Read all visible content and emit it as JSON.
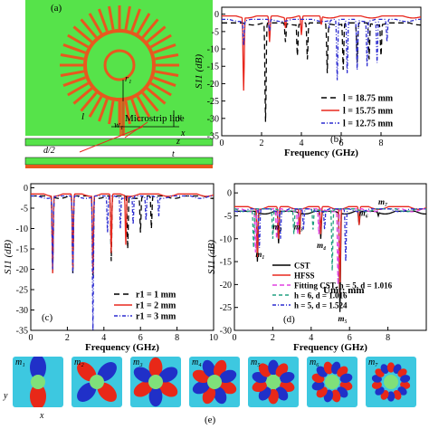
{
  "panel_a": {
    "label": "(a)",
    "annotations": {
      "r1": "r₁",
      "l": "l",
      "w1": "w₁",
      "microstrip": "Microstrip line",
      "half_d": "d/2",
      "t": "t",
      "y": "y",
      "x": "x",
      "z": "z"
    }
  },
  "panel_b": {
    "label": "(b)"
  },
  "panel_c": {
    "label": "(c)"
  },
  "panel_d": {
    "label": "(d)",
    "unit_text": "Unit: mm"
  },
  "panel_e": {
    "label": "(e)",
    "modes": [
      "m₁",
      "m₂",
      "m₃",
      "m₄",
      "m₅",
      "m₆",
      "m₇"
    ],
    "axis_y": "y",
    "axis_x": "x"
  },
  "chart_data": [
    {
      "type": "line",
      "panel": "(b)",
      "xlabel": "Frequency (GHz)",
      "ylabel": "S11 (dB)",
      "xlim": [
        0,
        10
      ],
      "ylim": [
        -35,
        2
      ],
      "xticks": [
        0,
        2,
        4,
        6,
        8
      ],
      "yticks": [
        0,
        -5,
        -10,
        -15,
        -20,
        -25,
        -30,
        -35
      ],
      "series": [
        {
          "name": "l = 18.75 mm",
          "color": "#000000",
          "dash": "6,4",
          "baseline": -2.5,
          "dips": [
            [
              2.2,
              -31
            ],
            [
              3.2,
              -8
            ],
            [
              3.8,
              -12
            ],
            [
              4.3,
              -13
            ],
            [
              5.3,
              -17
            ],
            [
              6.1,
              -16
            ],
            [
              6.8,
              -14
            ],
            [
              7.4,
              -13
            ],
            [
              8.0,
              -12
            ]
          ]
        },
        {
          "name": "l = 15.75 mm",
          "color": "#e8281e",
          "dash": "",
          "baseline": -0.5,
          "dips": [
            [
              1.1,
              -22
            ],
            [
              2.4,
              -8
            ],
            [
              3.2,
              -4
            ],
            [
              4.0,
              -6
            ],
            [
              5.0,
              -3
            ]
          ]
        },
        {
          "name": "l = 12.75 mm",
          "color": "#2c2cd0",
          "dash": "4,2,1,2",
          "baseline": -1.5,
          "dips": [
            [
              1.1,
              -9
            ],
            [
              2.4,
              -5
            ],
            [
              5.4,
              -4
            ],
            [
              5.8,
              -19
            ],
            [
              6.3,
              -17
            ],
            [
              6.8,
              -16
            ],
            [
              7.3,
              -15
            ],
            [
              7.8,
              -14
            ],
            [
              8.3,
              -8
            ]
          ]
        }
      ]
    },
    {
      "type": "line",
      "panel": "(c)",
      "xlabel": "Frequency (GHz)",
      "ylabel": "S11 (dB)",
      "xlim": [
        0,
        10
      ],
      "ylim": [
        -35,
        1
      ],
      "xticks": [
        0,
        2,
        4,
        6,
        8,
        10
      ],
      "yticks": [
        0,
        -5,
        -10,
        -15,
        -20,
        -25,
        -30,
        -35
      ],
      "series": [
        {
          "name": "r1 = 1 mm",
          "color": "#000000",
          "dash": "6,4",
          "baseline": -2,
          "dips": [
            [
              1.2,
              -21
            ],
            [
              2.3,
              -21
            ],
            [
              3.4,
              -22
            ],
            [
              4.4,
              -18
            ],
            [
              5.3,
              -15
            ],
            [
              6.0,
              -11
            ],
            [
              6.6,
              -10
            ]
          ]
        },
        {
          "name": "r1 = 2 mm",
          "color": "#e8281e",
          "dash": "",
          "baseline": -1.5,
          "dips": [
            [
              1.2,
              -21
            ],
            [
              2.3,
              -20
            ],
            [
              3.4,
              -21
            ],
            [
              4.4,
              -16
            ],
            [
              5.2,
              -14
            ]
          ]
        },
        {
          "name": "r1 = 3 mm",
          "color": "#2c2cd0",
          "dash": "4,2,1,2",
          "baseline": -2,
          "dips": [
            [
              1.2,
              -20
            ],
            [
              2.3,
              -21
            ],
            [
              3.4,
              -35
            ],
            [
              4.2,
              -11
            ],
            [
              4.9,
              -10
            ],
            [
              5.6,
              -9
            ],
            [
              6.3,
              -8
            ],
            [
              7.0,
              -7
            ]
          ]
        }
      ]
    },
    {
      "type": "line",
      "panel": "(d)",
      "xlabel": "Frequency (GHz)",
      "ylabel": "S11 (dB)",
      "xlim": [
        0,
        10
      ],
      "ylim": [
        -30,
        2
      ],
      "xticks": [
        0,
        2,
        4,
        6,
        8
      ],
      "yticks": [
        0,
        -5,
        -10,
        -15,
        -20,
        -25,
        -30
      ],
      "annotations": [
        "m₁",
        "m₂",
        "m₃",
        "m₄",
        "m₅",
        "m₆",
        "m₇"
      ],
      "series": [
        {
          "name": "CST",
          "color": "#000000",
          "dash": "",
          "baseline": -4,
          "dips": [
            [
              1.2,
              -15
            ],
            [
              2.3,
              -11
            ],
            [
              3.4,
              -9
            ],
            [
              4.5,
              -10
            ],
            [
              5.5,
              -26
            ],
            [
              6.5,
              -7
            ],
            [
              7.5,
              -5
            ]
          ]
        },
        {
          "name": "HFSS",
          "color": "#e8281e",
          "dash": "",
          "baseline": -3,
          "dips": [
            [
              1.2,
              -14
            ],
            [
              2.3,
              -10
            ],
            [
              3.4,
              -9
            ],
            [
              4.5,
              -9
            ],
            [
              5.5,
              -22
            ],
            [
              6.5,
              -7
            ]
          ]
        },
        {
          "name": "Fitting CST, h = 5, d = 1.016",
          "color": "#e040e0",
          "dash": "5,3",
          "baseline": -3.5,
          "dips": [
            [
              1.1,
              -13
            ],
            [
              2.2,
              -10
            ],
            [
              3.3,
              -9
            ],
            [
              4.4,
              -9
            ],
            [
              5.4,
              -20
            ]
          ]
        },
        {
          "name": "h = 6, d = 1.016",
          "color": "#20a080",
          "dash": "4,3",
          "baseline": -3.5,
          "dips": [
            [
              1.0,
              -12
            ],
            [
              2.0,
              -10
            ],
            [
              3.1,
              -9
            ],
            [
              4.1,
              -8
            ],
            [
              5.1,
              -17
            ]
          ]
        },
        {
          "name": "h = 5, d = 1.524",
          "color": "#2c2cd0",
          "dash": "4,2,1,2",
          "baseline": -3.5,
          "dips": [
            [
              1.3,
              -12
            ],
            [
              2.4,
              -10
            ],
            [
              3.6,
              -8
            ],
            [
              4.7,
              -8
            ],
            [
              5.8,
              -15
            ]
          ]
        }
      ]
    }
  ]
}
